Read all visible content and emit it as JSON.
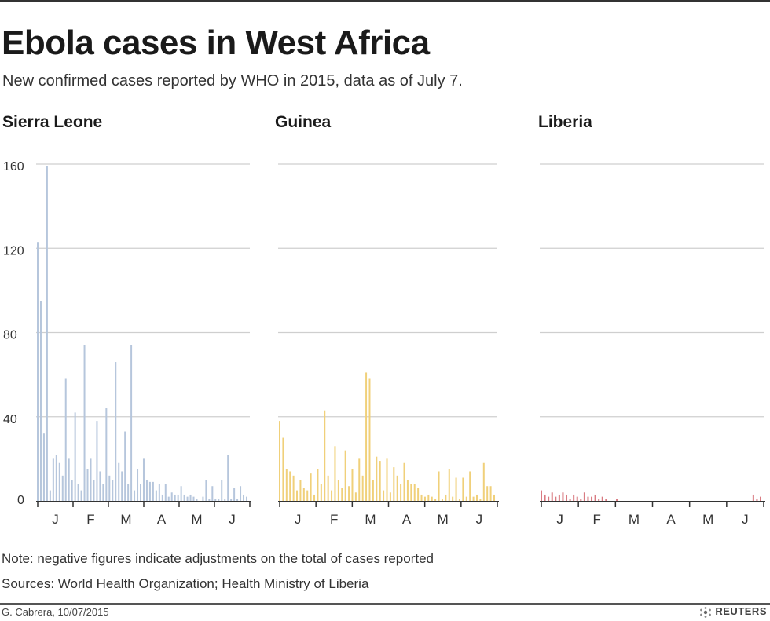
{
  "header": {
    "title": "Ebola cases in West Africa",
    "subtitle": "New confirmed cases reported by WHO in 2015, data as of July 7."
  },
  "chart_data": [
    {
      "type": "bar",
      "title": "Sierra Leone",
      "color": "#b6c6dc",
      "months": [
        "J",
        "F",
        "M",
        "A",
        "M",
        "J"
      ],
      "yticks": [
        0,
        40,
        80,
        120,
        160
      ],
      "ylim": [
        0,
        160
      ],
      "values": [
        123,
        95,
        32,
        159,
        5,
        20,
        22,
        18,
        12,
        58,
        20,
        10,
        42,
        8,
        5,
        74,
        15,
        20,
        10,
        38,
        14,
        8,
        44,
        12,
        10,
        66,
        18,
        14,
        33,
        8,
        74,
        5,
        15,
        8,
        20,
        10,
        9,
        9,
        5,
        8,
        3,
        8,
        2,
        4,
        3,
        3,
        7,
        3,
        2,
        3,
        2,
        1,
        0,
        2,
        10,
        1,
        7,
        1,
        1,
        10,
        1,
        22,
        1,
        6,
        1,
        7,
        3,
        2
      ]
    },
    {
      "type": "bar",
      "title": "Guinea",
      "color": "#f0d07a",
      "months": [
        "J",
        "F",
        "M",
        "A",
        "M",
        "J"
      ],
      "yticks": [
        0,
        40,
        80,
        120,
        160
      ],
      "ylim": [
        0,
        160
      ],
      "values": [
        38,
        30,
        15,
        14,
        12,
        5,
        10,
        6,
        5,
        13,
        3,
        15,
        8,
        43,
        12,
        5,
        26,
        10,
        6,
        24,
        7,
        15,
        4,
        20,
        12,
        61,
        58,
        10,
        21,
        19,
        5,
        20,
        4,
        16,
        12,
        8,
        18,
        10,
        8,
        8,
        6,
        3,
        2,
        3,
        2,
        1,
        14,
        1,
        3,
        15,
        2,
        11,
        1,
        11,
        2,
        14,
        2,
        3,
        1,
        18,
        7,
        7,
        3
      ]
    },
    {
      "type": "bar",
      "title": "Liberia",
      "color": "#d97b82",
      "months": [
        "J",
        "F",
        "M",
        "A",
        "M",
        "J"
      ],
      "yticks": [
        0,
        40,
        80,
        120,
        160
      ],
      "ylim": [
        0,
        160
      ],
      "values": [
        5,
        3,
        2,
        4,
        2,
        3,
        4,
        3,
        1,
        3,
        2,
        1,
        4,
        2,
        2,
        3,
        1,
        2,
        1,
        0,
        0,
        1,
        0,
        0,
        0,
        0,
        0,
        0,
        0,
        0,
        0,
        0,
        0,
        0,
        0,
        0,
        0,
        0,
        0,
        0,
        0,
        0,
        0,
        0,
        0,
        0,
        0,
        0,
        0,
        0,
        0,
        0,
        0,
        0,
        0,
        0,
        0,
        0,
        0,
        3,
        1,
        2
      ]
    }
  ],
  "footer": {
    "note": "Note: negative figures indicate adjustments on the total of cases reported",
    "sources": "Sources: World Health Organization; Health Ministry of Liberia",
    "byline": "G. Cabrera, 10/07/2015",
    "brand": "REUTERS"
  }
}
